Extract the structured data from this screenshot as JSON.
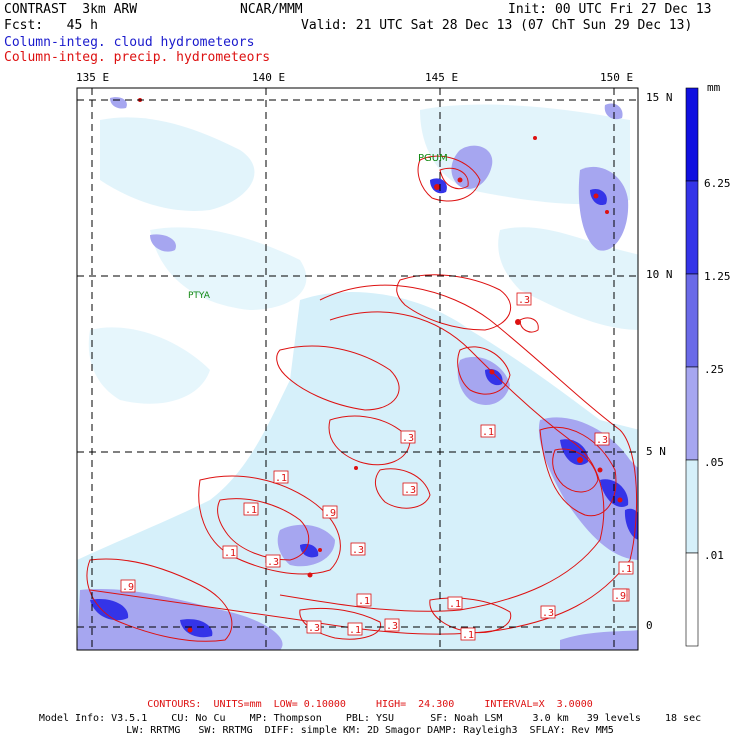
{
  "header": {
    "title": "CONTRAST  3km ARW",
    "center": "NCAR/MMM",
    "init": "Init: 00 UTC Fri 27 Dec 13",
    "fcst": "Fcst:   45 h",
    "valid": "Valid: 21 UTC Sat 28 Dec 13 (07 ChT Sun 29 Dec 13)",
    "field1": "Column-integ. cloud hydrometeors",
    "field2": "Column-integ. precip. hydrometeors"
  },
  "map": {
    "lon_labels": [
      "135 E",
      "140 E",
      "145 E",
      "150 E"
    ],
    "lat_labels": [
      "15 N",
      "10 N",
      "5 N",
      "0"
    ],
    "stations": [
      "PGUM",
      "PTYA"
    ],
    "contour_labels": [
      ".3",
      ".3",
      ".3",
      ".1",
      ".3",
      ".1",
      ".9",
      ".1",
      ".3",
      ".9",
      ".1",
      ".1",
      ".3",
      ".9",
      ".3",
      ".3",
      ".1",
      ".1",
      ".1",
      ".9",
      ".3",
      ".1"
    ]
  },
  "colorbar": {
    "unit": "mm",
    "labels": [
      "6.25",
      "1.25",
      ".25",
      ".05",
      ".01"
    ],
    "colors": [
      "#1010e0",
      "#3434e8",
      "#6a6ae8",
      "#a6a6f0",
      "#d6f0fa",
      "#ffffff"
    ]
  },
  "footer": {
    "contours_label": "CONTOURS:  UNITS=mm  LOW= 0.10000     HIGH=  24.300     INTERVAL=X  3.0000",
    "model_info_1": "Model Info: V3.5.1    CU: No Cu    MP: Thompson    PBL: YSU      SF: Noah LSM     3.0 km   39 levels    18 sec",
    "model_info_2": "LW: RRTMG   SW: RRTMG  DIFF: simple KM: 2D Smagor DAMP: Rayleigh3  SFLAY: Rev MM5"
  }
}
